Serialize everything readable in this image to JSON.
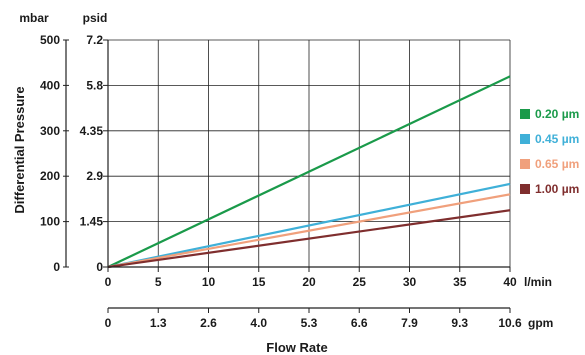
{
  "chart_data": {
    "type": "line",
    "title": "",
    "xlabel": "Flow Rate",
    "ylabel": "Differential Pressure",
    "x_primary": {
      "unit": "l/min",
      "ticks": [
        "0",
        "5",
        "10",
        "15",
        "20",
        "25",
        "30",
        "35",
        "40"
      ],
      "range": [
        0,
        40
      ]
    },
    "x_secondary": {
      "unit": "gpm",
      "ticks": [
        "0",
        "1.3",
        "2.6",
        "4.0",
        "5.3",
        "6.6",
        "7.9",
        "9.3",
        "10.6"
      ]
    },
    "y_primary": {
      "unit": "mbar",
      "ticks": [
        "0",
        "100",
        "200",
        "300",
        "400",
        "500"
      ],
      "range": [
        0,
        500
      ]
    },
    "y_secondary": {
      "unit": "psid",
      "ticks": [
        "0",
        "1.45",
        "2.9",
        "4.35",
        "5.8",
        "7.2"
      ]
    },
    "grid": true,
    "legend_position": "right",
    "series": [
      {
        "name": "0.20 µm",
        "color": "#1a9a4a",
        "x": [
          0,
          40
        ],
        "y": [
          0,
          420
        ]
      },
      {
        "name": "0.45 µm",
        "color": "#3fb0d8",
        "x": [
          0,
          40
        ],
        "y": [
          0,
          183
        ]
      },
      {
        "name": "0.65 µm",
        "color": "#f0a07c",
        "x": [
          0,
          40
        ],
        "y": [
          0,
          160
        ]
      },
      {
        "name": "1.00 µm",
        "color": "#7f2e2e",
        "x": [
          0,
          40
        ],
        "y": [
          0,
          125
        ]
      }
    ]
  }
}
